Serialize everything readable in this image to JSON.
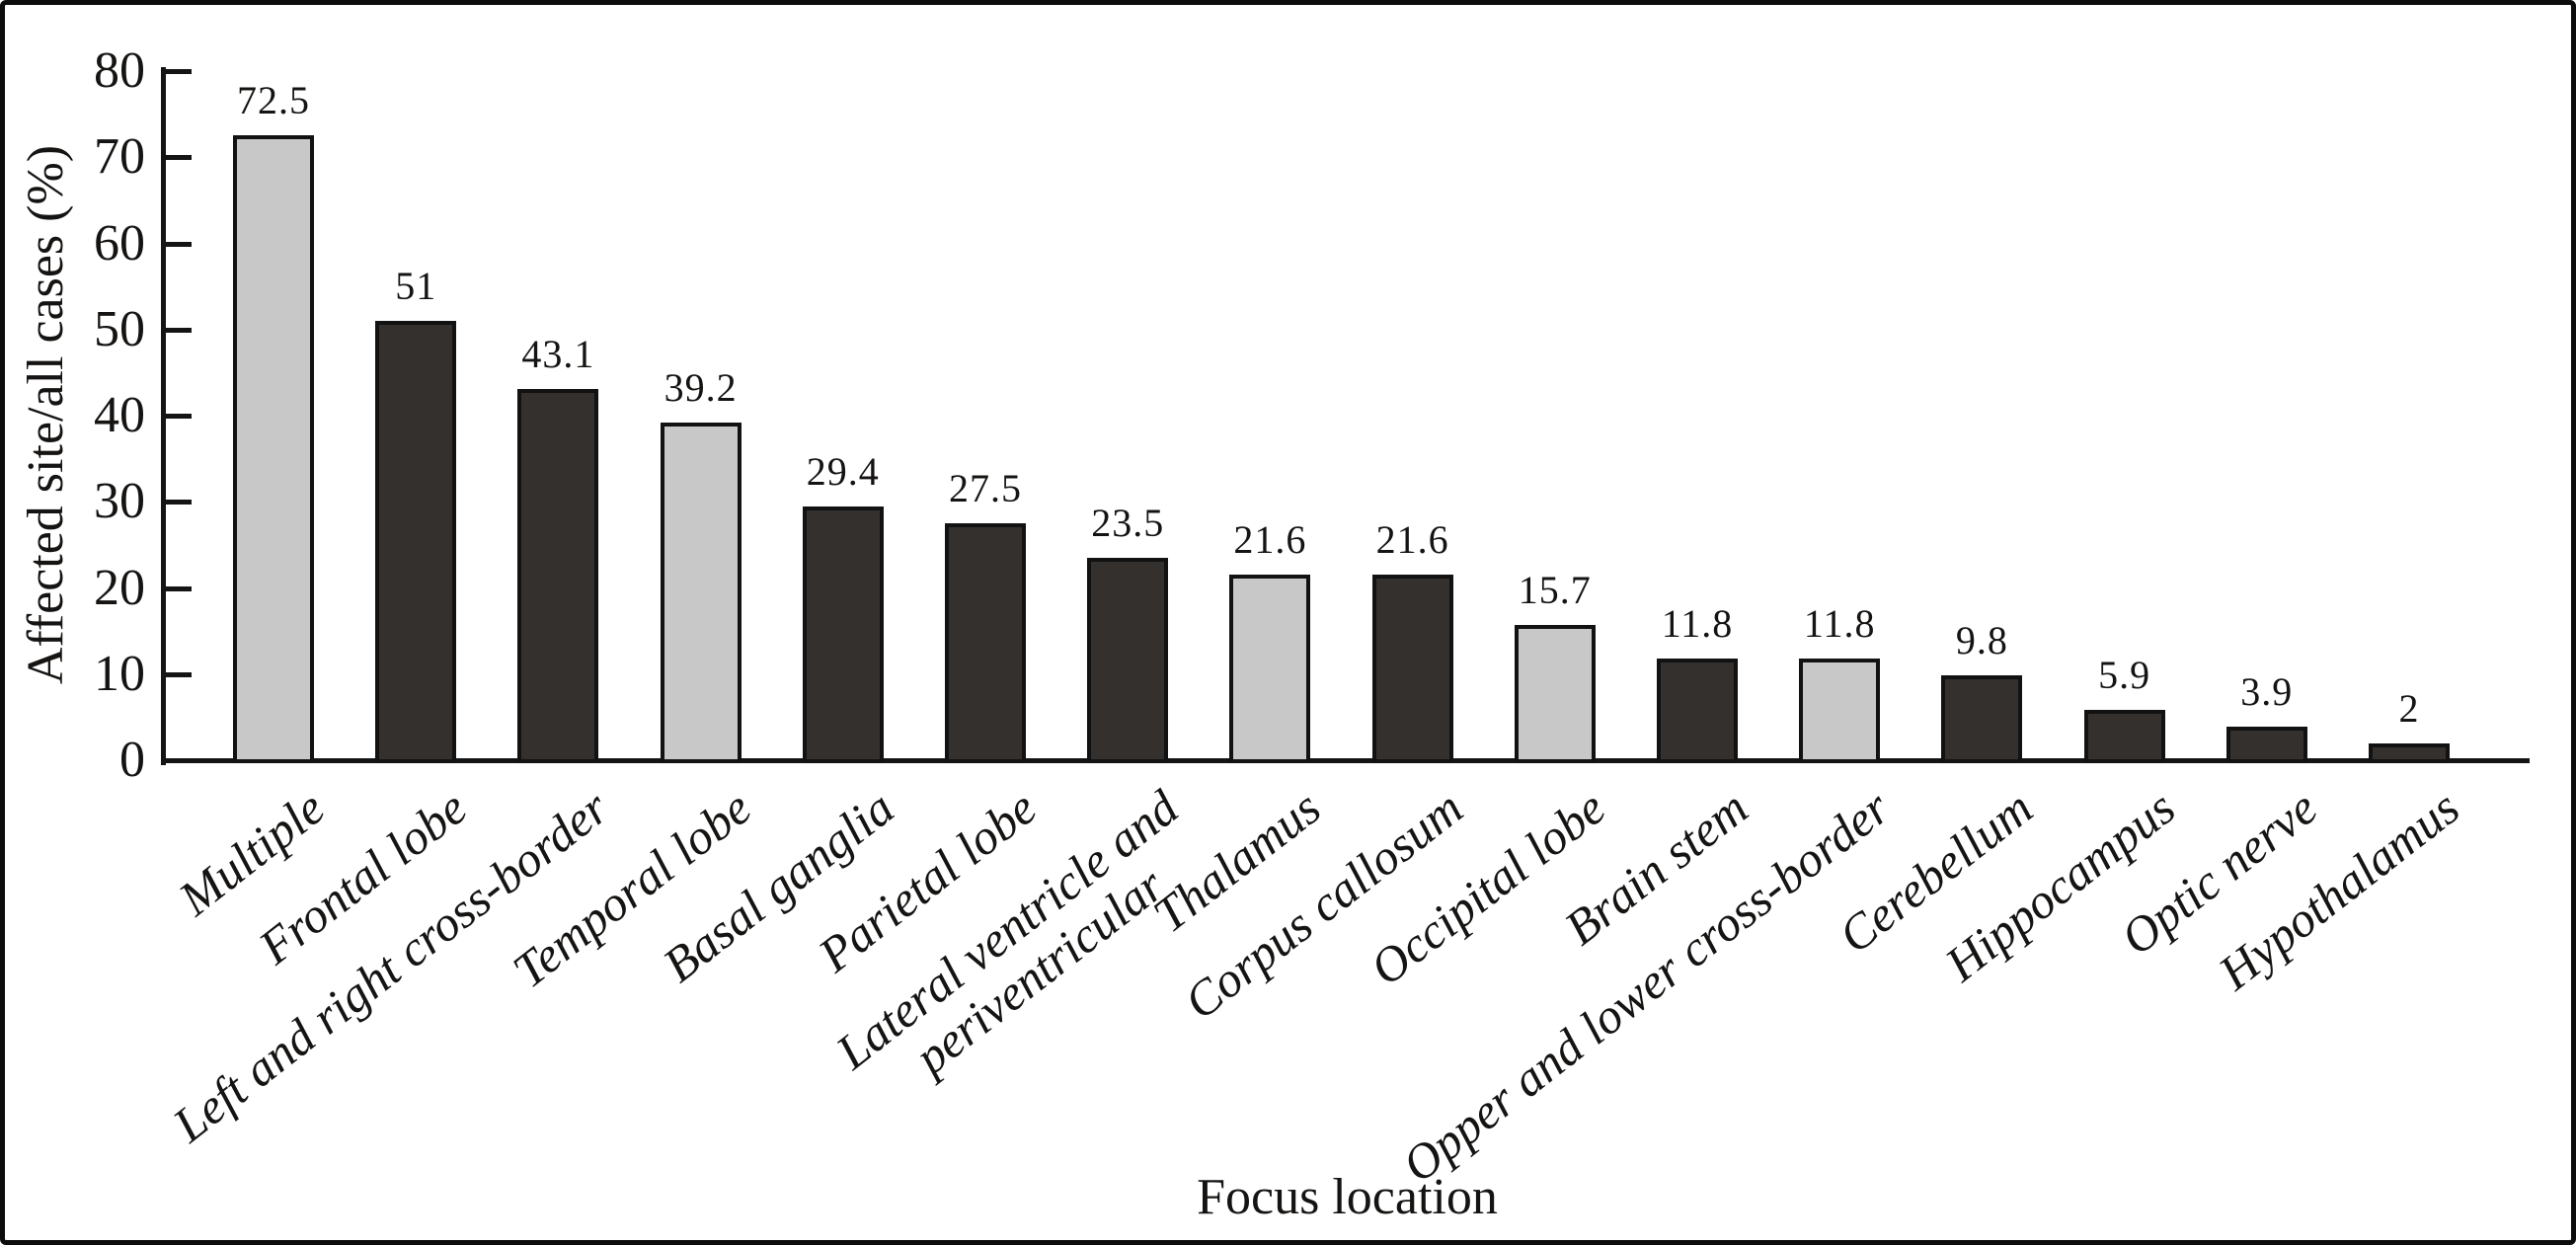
{
  "chart_data": {
    "type": "bar",
    "title": "",
    "xlabel": "Focus location",
    "ylabel": "Affected site/all cases (%)",
    "ylim": [
      0,
      80
    ],
    "grid": false,
    "legend": false,
    "ytick_labels": [
      "0",
      "10",
      "20",
      "30",
      "40",
      "50",
      "60",
      "70",
      "80"
    ],
    "categories": [
      "Multiple",
      "Frontal lobe",
      "Left and right cross-border",
      "Temporal lobe",
      "Basal ganglia",
      "Parietal lobe",
      "Lateral ventricle and\nperiventricular",
      "Thalamus",
      "Corpus callosum",
      "Occipital lobe",
      "Brain stem",
      "Opper and lower cross-border",
      "Cerebellum",
      "Hippocampus",
      "Optic nerve",
      "Hypothalamus"
    ],
    "values": [
      72.5,
      51,
      43.1,
      39.2,
      29.4,
      27.5,
      23.5,
      21.6,
      21.6,
      15.7,
      11.8,
      11.8,
      9.8,
      5.9,
      3.9,
      2
    ],
    "value_labels": [
      "72.5",
      "51",
      "43.1",
      "39.2",
      "29.4",
      "27.5",
      "23.5",
      "21.6",
      "21.6",
      "15.7",
      "11.8",
      "11.8",
      "9.8",
      "5.9",
      "3.9",
      "2"
    ],
    "bar_styles": [
      "light",
      "dark",
      "dark",
      "light",
      "dark",
      "dark",
      "dark",
      "light",
      "dark",
      "light",
      "dark",
      "light",
      "dark",
      "dark",
      "dark",
      "dark"
    ],
    "colors": {
      "light_bar_fill": "#c8c8c8",
      "dark_bar_fill": "#34302e",
      "bar_edge": "#121212",
      "axis": "#141414",
      "text": "#161412",
      "background": "#ffffff",
      "frame_border": "#0c0c0c"
    }
  }
}
